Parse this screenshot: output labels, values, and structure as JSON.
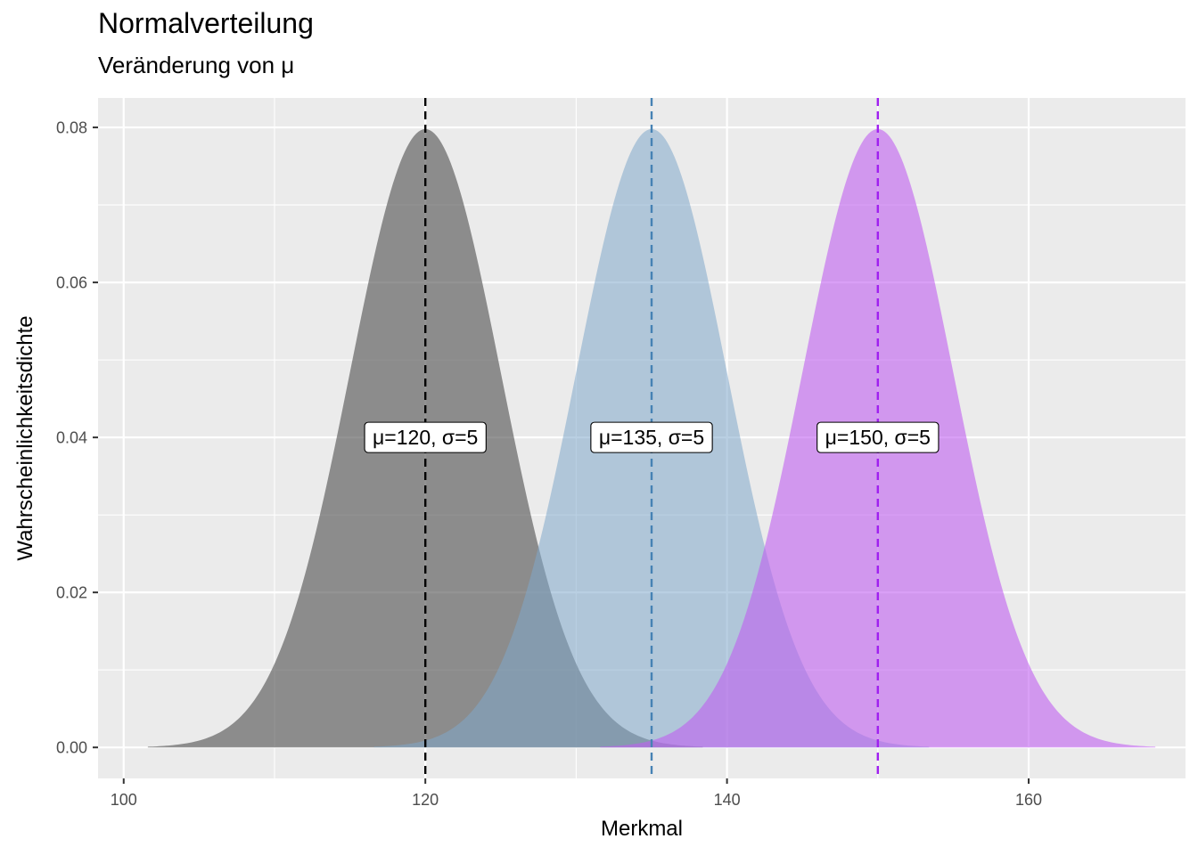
{
  "chart_data": {
    "type": "area",
    "title": "Normalverteilung",
    "subtitle": "Veränderung von μ",
    "xlabel": "Merkmal",
    "ylabel": "Wahrscheinlichkeitsdichte",
    "xlim": [
      98.3,
      170.4
    ],
    "ylim": [
      -0.004,
      0.0838
    ],
    "x_ticks": [
      100,
      120,
      140,
      160
    ],
    "x_tick_labels": [
      "100",
      "120",
      "140",
      "160"
    ],
    "y_ticks": [
      0.0,
      0.02,
      0.04,
      0.06,
      0.08
    ],
    "y_tick_labels": [
      "0.00",
      "0.02",
      "0.04",
      "0.06",
      "0.08"
    ],
    "grid": true,
    "legend": "none",
    "curves": [
      {
        "mu": 120,
        "sigma": 5,
        "range": [
          101.6,
          138.4
        ],
        "fill": "#595959",
        "fill_opacity": 0.65,
        "line_color": "#000000",
        "label": "μ=120, σ=5"
      },
      {
        "mu": 135,
        "sigma": 5,
        "range": [
          116.6,
          153.4
        ],
        "fill": "#80a8cb",
        "fill_opacity": 0.55,
        "line_color": "#4682b4",
        "label": "μ=135, σ=5"
      },
      {
        "mu": 150,
        "sigma": 5,
        "range": [
          131.6,
          168.4
        ],
        "fill": "#bf5ff0",
        "fill_opacity": 0.6,
        "line_color": "#a020f0",
        "label": "μ=150, σ=5"
      }
    ],
    "label_y": 0.04
  }
}
